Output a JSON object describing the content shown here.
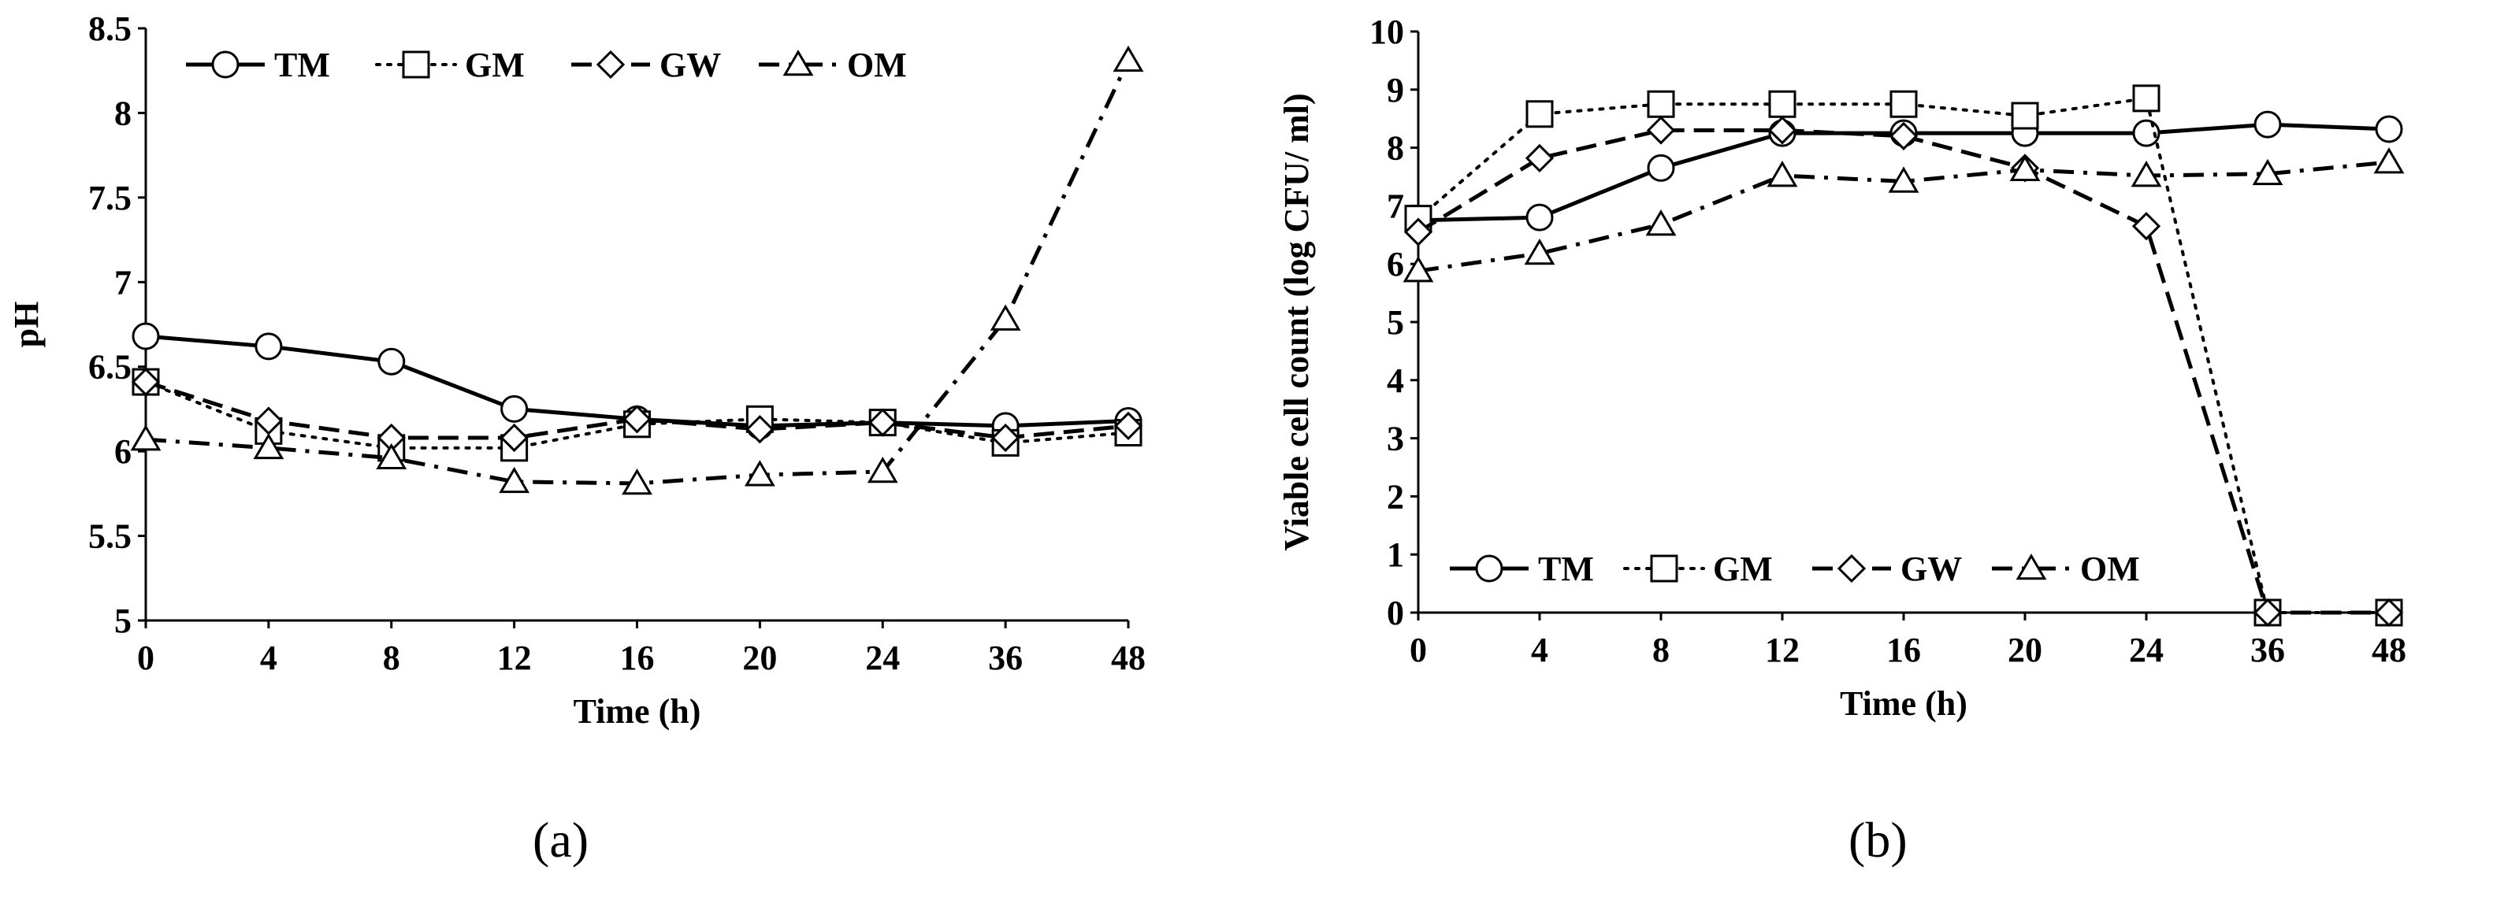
{
  "panels": [
    {
      "label": "(a)"
    },
    {
      "label": "(b)"
    }
  ],
  "chart_data": [
    {
      "type": "line",
      "xlabel": "Time (h)",
      "ylabel": "pH",
      "categories": [
        "0",
        "4",
        "8",
        "12",
        "16",
        "20",
        "24",
        "36",
        "48"
      ],
      "ylim": [
        5,
        8.5
      ],
      "yticks": [
        "5",
        "5.5",
        "6",
        "6.5",
        "7",
        "7.5",
        "8",
        "8.5"
      ],
      "legend_position": "top",
      "grid": false,
      "series": [
        {
          "name": "TM",
          "marker": "circle",
          "line": "solid",
          "values": [
            6.68,
            6.62,
            6.53,
            6.25,
            6.19,
            6.15,
            6.17,
            6.15,
            6.18
          ]
        },
        {
          "name": "GM",
          "marker": "square",
          "line": "dotted",
          "values": [
            6.41,
            6.12,
            6.02,
            6.02,
            6.16,
            6.19,
            6.17,
            6.05,
            6.11
          ]
        },
        {
          "name": "GW",
          "marker": "diamond",
          "line": "dashed",
          "values": [
            6.41,
            6.18,
            6.08,
            6.08,
            6.19,
            6.13,
            6.17,
            6.08,
            6.15
          ]
        },
        {
          "name": "OM",
          "marker": "triangle",
          "line": "dashdot",
          "values": [
            6.07,
            6.02,
            5.96,
            5.82,
            5.81,
            5.86,
            5.88,
            6.78,
            8.31
          ]
        }
      ]
    },
    {
      "type": "line",
      "xlabel": "Time (h)",
      "ylabel": "Viable cell count (log CFU/ ml)",
      "categories": [
        "0",
        "4",
        "8",
        "12",
        "16",
        "20",
        "24",
        "36",
        "48"
      ],
      "ylim": [
        0,
        10
      ],
      "yticks": [
        "0",
        "1",
        "2",
        "3",
        "4",
        "5",
        "6",
        "7",
        "8",
        "9",
        "10"
      ],
      "legend_position": "bottom",
      "grid": false,
      "series": [
        {
          "name": "TM",
          "marker": "circle",
          "line": "solid",
          "values": [
            6.75,
            6.8,
            7.65,
            8.25,
            8.25,
            8.25,
            8.25,
            8.4,
            8.32
          ]
        },
        {
          "name": "GM",
          "marker": "square",
          "line": "dotted",
          "values": [
            6.78,
            8.58,
            8.75,
            8.75,
            8.75,
            8.55,
            8.85,
            0,
            0
          ]
        },
        {
          "name": "GW",
          "marker": "diamond",
          "line": "dashed",
          "values": [
            6.55,
            7.82,
            8.3,
            8.3,
            8.2,
            7.65,
            6.65,
            0,
            0
          ]
        },
        {
          "name": "OM",
          "marker": "triangle",
          "line": "dashdot",
          "values": [
            5.88,
            6.18,
            6.68,
            7.52,
            7.42,
            7.62,
            7.52,
            7.55,
            7.75
          ]
        }
      ]
    }
  ]
}
